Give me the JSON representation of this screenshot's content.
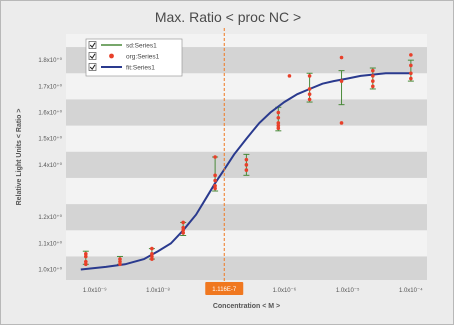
{
  "chart_data": {
    "type": "scatter",
    "title": "Max. Ratio < proc NC >",
    "xlabel": "Concentration < M >",
    "ylabel": "Relative Light Units < Ratio >",
    "xscale": "log",
    "xlim": [
      3.5e-10,
      0.00018
    ],
    "ylim": [
      0.96,
      1.9
    ],
    "x_ticks": [
      {
        "value": 1e-09,
        "label": "1.0x10⁻⁹"
      },
      {
        "value": 1e-08,
        "label": "1.0x10⁻⁸"
      },
      {
        "value": 1e-07,
        "label": "1.0x10⁻⁷"
      },
      {
        "value": 1e-06,
        "label": "1.0x10⁻⁶"
      },
      {
        "value": 1e-05,
        "label": "1.0x10⁻⁵"
      },
      {
        "value": 0.0001,
        "label": "1.0x10⁻⁴"
      }
    ],
    "y_ticks": [
      {
        "value": 1.0,
        "label": "1.0x10⁺⁰"
      },
      {
        "value": 1.1,
        "label": "1.1x10⁺⁰"
      },
      {
        "value": 1.2,
        "label": "1.2x10⁺⁰"
      },
      {
        "value": 1.4,
        "label": "1.4x10⁺⁰"
      },
      {
        "value": 1.5,
        "label": "1.5x10⁺⁰"
      },
      {
        "value": 1.6,
        "label": "1.6x10⁺⁰"
      },
      {
        "value": 1.7,
        "label": "1.7x10⁺⁰"
      },
      {
        "value": 1.8,
        "label": "1.8x10⁺⁰"
      }
    ],
    "grid": "horizontal-bands",
    "legend": {
      "placement": "top-left",
      "entries": [
        {
          "label": "sd:Series1",
          "type": "line",
          "color": "#4a8a3a",
          "checked": true
        },
        {
          "label": "org:Series1",
          "type": "point",
          "color": "#e8402a",
          "checked": true
        },
        {
          "label": "fit:Series1",
          "type": "line",
          "color": "#2a3a8e",
          "checked": true
        }
      ]
    },
    "series": [
      {
        "name": "org:Series1",
        "color": "#e8402a",
        "points": [
          {
            "x": 7.2e-10,
            "y": 1.06
          },
          {
            "x": 7.2e-10,
            "y": 1.05
          },
          {
            "x": 7.2e-10,
            "y": 1.03
          },
          {
            "x": 7.2e-10,
            "y": 1.02
          },
          {
            "x": 2.5e-09,
            "y": 1.04
          },
          {
            "x": 2.5e-09,
            "y": 1.03
          },
          {
            "x": 2.5e-09,
            "y": 1.02
          },
          {
            "x": 8e-09,
            "y": 1.08
          },
          {
            "x": 8e-09,
            "y": 1.06
          },
          {
            "x": 8e-09,
            "y": 1.05
          },
          {
            "x": 8e-09,
            "y": 1.04
          },
          {
            "x": 2.5e-08,
            "y": 1.18
          },
          {
            "x": 2.5e-08,
            "y": 1.16
          },
          {
            "x": 2.5e-08,
            "y": 1.15
          },
          {
            "x": 2.5e-08,
            "y": 1.14
          },
          {
            "x": 8e-08,
            "y": 1.43
          },
          {
            "x": 8e-08,
            "y": 1.36
          },
          {
            "x": 8e-08,
            "y": 1.34
          },
          {
            "x": 8e-08,
            "y": 1.32
          },
          {
            "x": 8e-08,
            "y": 1.31
          },
          {
            "x": 2.5e-07,
            "y": 1.42
          },
          {
            "x": 2.5e-07,
            "y": 1.4
          },
          {
            "x": 2.5e-07,
            "y": 1.38
          },
          {
            "x": 8e-07,
            "y": 1.6
          },
          {
            "x": 8e-07,
            "y": 1.58
          },
          {
            "x": 8e-07,
            "y": 1.56
          },
          {
            "x": 8e-07,
            "y": 1.55
          },
          {
            "x": 8e-07,
            "y": 1.54
          },
          {
            "x": 1.2e-06,
            "y": 1.74
          },
          {
            "x": 2.5e-06,
            "y": 1.74
          },
          {
            "x": 2.5e-06,
            "y": 1.69
          },
          {
            "x": 2.5e-06,
            "y": 1.67
          },
          {
            "x": 2.5e-06,
            "y": 1.65
          },
          {
            "x": 8e-06,
            "y": 1.81
          },
          {
            "x": 8e-06,
            "y": 1.72
          },
          {
            "x": 8e-06,
            "y": 1.56
          },
          {
            "x": 2.5e-05,
            "y": 1.76
          },
          {
            "x": 2.5e-05,
            "y": 1.74
          },
          {
            "x": 2.5e-05,
            "y": 1.72
          },
          {
            "x": 2.5e-05,
            "y": 1.7
          },
          {
            "x": 0.0001,
            "y": 1.82
          },
          {
            "x": 0.0001,
            "y": 1.78
          },
          {
            "x": 0.0001,
            "y": 1.75
          },
          {
            "x": 0.0001,
            "y": 1.73
          }
        ]
      },
      {
        "name": "sd:Series1",
        "color": "#4a8a3a",
        "errorbars": [
          {
            "x": 7.2e-10,
            "low": 1.02,
            "high": 1.07
          },
          {
            "x": 2.5e-09,
            "low": 1.02,
            "high": 1.05
          },
          {
            "x": 8e-09,
            "low": 1.04,
            "high": 1.08
          },
          {
            "x": 2.5e-08,
            "low": 1.13,
            "high": 1.18
          },
          {
            "x": 8e-08,
            "low": 1.3,
            "high": 1.43
          },
          {
            "x": 2.5e-07,
            "low": 1.36,
            "high": 1.44
          },
          {
            "x": 8e-07,
            "low": 1.53,
            "high": 1.62
          },
          {
            "x": 2.5e-06,
            "low": 1.64,
            "high": 1.75
          },
          {
            "x": 8e-06,
            "low": 1.63,
            "high": 1.76
          },
          {
            "x": 2.5e-05,
            "low": 1.69,
            "high": 1.77
          },
          {
            "x": 0.0001,
            "low": 1.72,
            "high": 1.8
          }
        ]
      },
      {
        "name": "fit:Series1",
        "color": "#2a3a8e",
        "curve": {
          "x": [
            6e-10,
            1.5e-09,
            3e-09,
            6e-09,
            1e-08,
            1.6e-08,
            2.5e-08,
            4e-08,
            6e-08,
            8e-08,
            1.1e-07,
            1.6e-07,
            2.5e-07,
            4e-07,
            6e-07,
            1e-06,
            1.6e-06,
            2.5e-06,
            4e-06,
            6e-06,
            1e-05,
            1.6e-05,
            2.5e-05,
            4e-05,
            6e-05,
            0.0001
          ],
          "y": [
            1.0,
            1.01,
            1.02,
            1.04,
            1.07,
            1.1,
            1.15,
            1.21,
            1.28,
            1.33,
            1.38,
            1.44,
            1.5,
            1.56,
            1.6,
            1.64,
            1.67,
            1.69,
            1.71,
            1.72,
            1.73,
            1.74,
            1.745,
            1.75,
            1.75,
            1.75
          ]
        }
      }
    ],
    "annotations": [
      {
        "type": "vertical-line",
        "x": 1.116e-07,
        "color": "#f07820",
        "label": "1.116E-7"
      }
    ]
  }
}
